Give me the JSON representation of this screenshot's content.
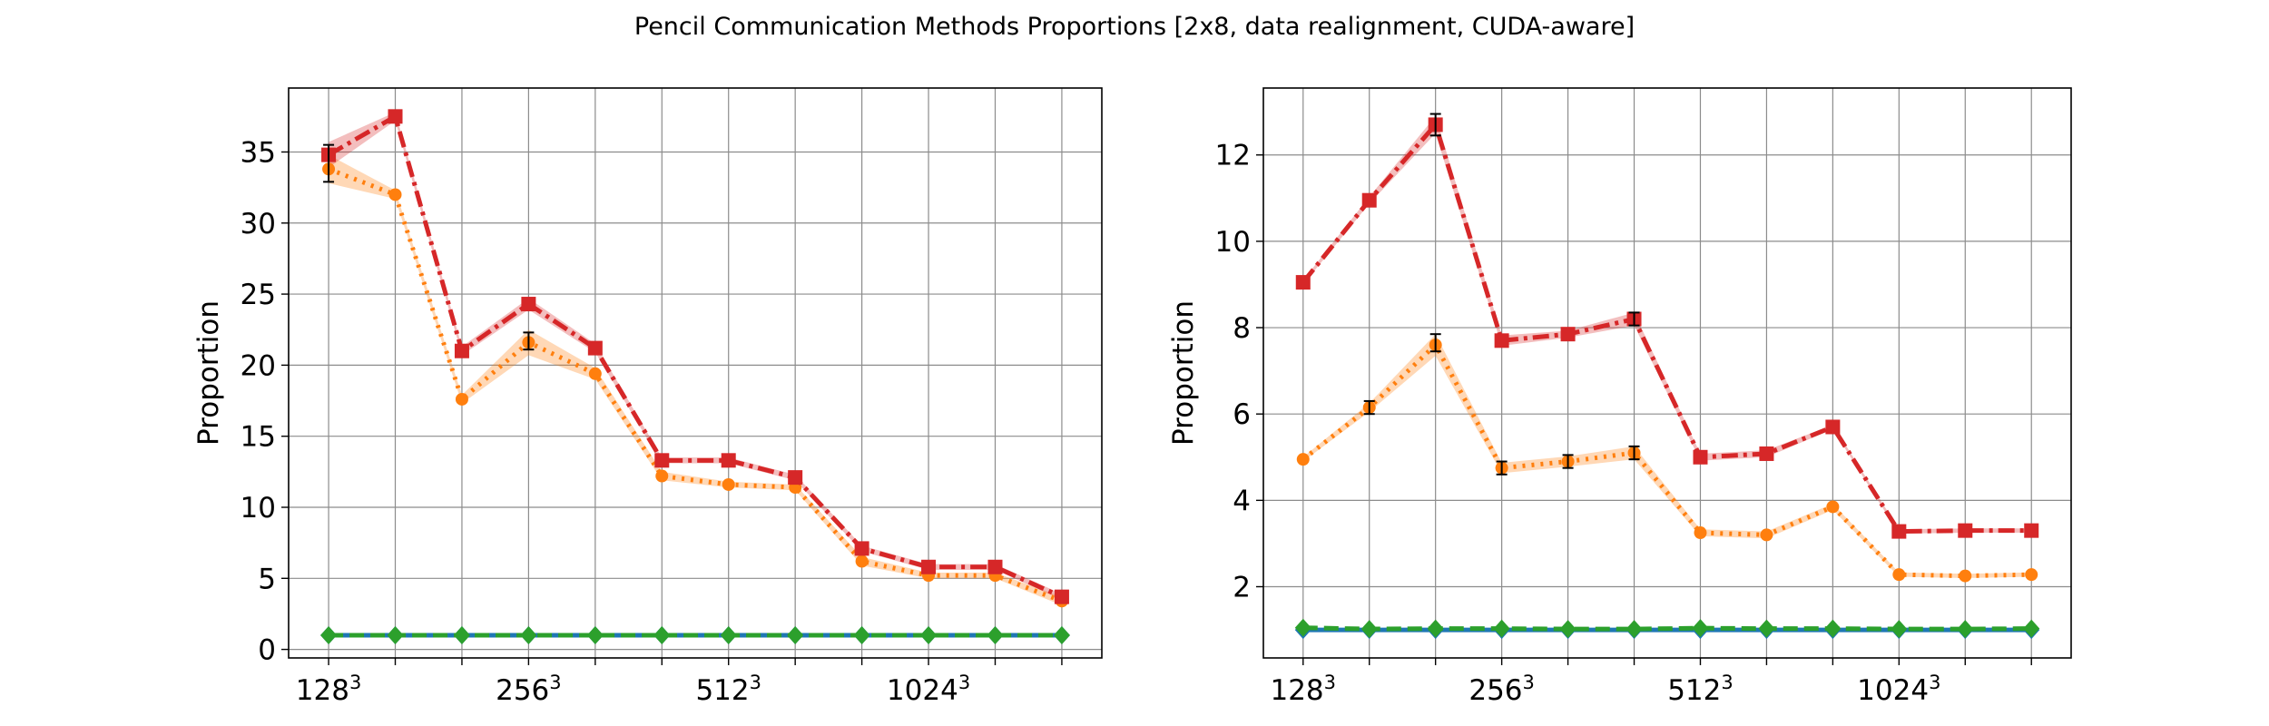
{
  "figure": {
    "title": "Pencil Communication Methods Proportions [2x8, data realignment, CUDA-aware]"
  },
  "chart_data": [
    {
      "type": "line",
      "ylabel": "Proportion",
      "xlabel": "",
      "x": [
        0,
        1,
        2,
        3,
        4,
        5,
        6,
        7,
        8,
        9,
        10,
        11
      ],
      "xticks": [
        0,
        3,
        6,
        9
      ],
      "xtick_labels": [
        {
          "base": "128",
          "exp": "3"
        },
        {
          "base": "256",
          "exp": "3"
        },
        {
          "base": "512",
          "exp": "3"
        },
        {
          "base": "1024",
          "exp": "3"
        }
      ],
      "xlim": [
        -0.6,
        11.6
      ],
      "ylim": [
        -0.6,
        39.5
      ],
      "yticks": [
        0,
        5,
        10,
        15,
        20,
        25,
        30,
        35
      ],
      "grid": true,
      "series": [
        {
          "values": [
            1.0,
            1.0,
            1.0,
            1.0,
            1.0,
            1.0,
            1.0,
            1.0,
            1.0,
            1.0,
            1.0,
            1.0
          ],
          "color": "#1f77b4",
          "style": "solid",
          "marker": "diamond"
        },
        {
          "values": [
            1.0,
            1.0,
            1.0,
            1.0,
            1.0,
            1.0,
            1.0,
            1.0,
            1.0,
            1.0,
            1.0,
            1.0
          ],
          "color": "#2ca02c",
          "style": "dashed",
          "marker": "diamond"
        },
        {
          "values": [
            33.8,
            32.0,
            17.6,
            21.6,
            19.4,
            12.2,
            11.6,
            11.4,
            6.2,
            5.2,
            5.2,
            3.4
          ],
          "color": "#ff7f0e",
          "style": "dotted",
          "marker": "circle",
          "band": [
            1.0,
            0.3,
            0.3,
            0.9,
            0.4,
            0.3,
            0.2,
            0.2,
            0.3,
            0.2,
            0.2,
            0.3
          ]
        },
        {
          "values": [
            34.8,
            37.5,
            21.0,
            24.3,
            21.2,
            13.3,
            13.3,
            12.1,
            7.1,
            5.8,
            5.8,
            3.7
          ],
          "color": "#d62728",
          "style": "dashdot",
          "marker": "square",
          "band": [
            0.9,
            0.3,
            0.3,
            0.4,
            0.3,
            0.2,
            0.2,
            0.2,
            0.2,
            0.2,
            0.2,
            0.2
          ]
        }
      ],
      "errorbars": [
        {
          "x": 0,
          "low": 32.9,
          "high": 35.5
        },
        {
          "x": 3,
          "low": 21.1,
          "high": 22.3
        }
      ]
    },
    {
      "type": "line",
      "ylabel": "Proportion",
      "xlabel": "",
      "x": [
        0,
        1,
        2,
        3,
        4,
        5,
        6,
        7,
        8,
        9,
        10,
        11
      ],
      "xticks": [
        0,
        3,
        6,
        9
      ],
      "xtick_labels": [
        {
          "base": "128",
          "exp": "3"
        },
        {
          "base": "256",
          "exp": "3"
        },
        {
          "base": "512",
          "exp": "3"
        },
        {
          "base": "1024",
          "exp": "3"
        }
      ],
      "xlim": [
        -0.6,
        11.6
      ],
      "ylim": [
        0.35,
        13.55
      ],
      "yticks": [
        2,
        4,
        6,
        8,
        10,
        12
      ],
      "grid": true,
      "series": [
        {
          "values": [
            1.0,
            1.0,
            1.0,
            1.0,
            1.0,
            1.0,
            1.0,
            1.0,
            1.0,
            1.0,
            1.0,
            1.0
          ],
          "color": "#1f77b4",
          "style": "solid",
          "marker": "diamond"
        },
        {
          "values": [
            1.05,
            1.02,
            1.03,
            1.03,
            1.02,
            1.02,
            1.04,
            1.03,
            1.03,
            1.02,
            1.02,
            1.03
          ],
          "color": "#2ca02c",
          "style": "dashed",
          "marker": "diamond"
        },
        {
          "values": [
            4.95,
            6.15,
            7.6,
            4.75,
            4.9,
            5.1,
            3.25,
            3.2,
            3.85,
            2.28,
            2.25,
            2.28
          ],
          "color": "#ff7f0e",
          "style": "dotted",
          "marker": "circle",
          "band": [
            0.05,
            0.1,
            0.25,
            0.12,
            0.12,
            0.15,
            0.08,
            0.08,
            0.07,
            0.05,
            0.05,
            0.05
          ]
        },
        {
          "values": [
            9.05,
            10.95,
            12.7,
            7.7,
            7.85,
            8.2,
            5.0,
            5.08,
            5.7,
            3.28,
            3.3,
            3.3
          ],
          "color": "#d62728",
          "style": "dashdot",
          "marker": "square",
          "band": [
            0.05,
            0.08,
            0.2,
            0.12,
            0.08,
            0.15,
            0.08,
            0.08,
            0.05,
            0.05,
            0.05,
            0.05
          ]
        }
      ],
      "errorbars": [
        {
          "x": 2,
          "low": 12.45,
          "high": 12.95
        },
        {
          "x": 2,
          "low": 7.45,
          "high": 7.85
        },
        {
          "x": 3,
          "low": 4.6,
          "high": 4.9
        },
        {
          "x": 4,
          "low": 4.75,
          "high": 5.05
        },
        {
          "x": 5,
          "low": 4.95,
          "high": 5.25
        },
        {
          "x": 5,
          "low": 8.05,
          "high": 8.35
        },
        {
          "x": 1,
          "low": 6.0,
          "high": 6.3
        }
      ]
    }
  ]
}
